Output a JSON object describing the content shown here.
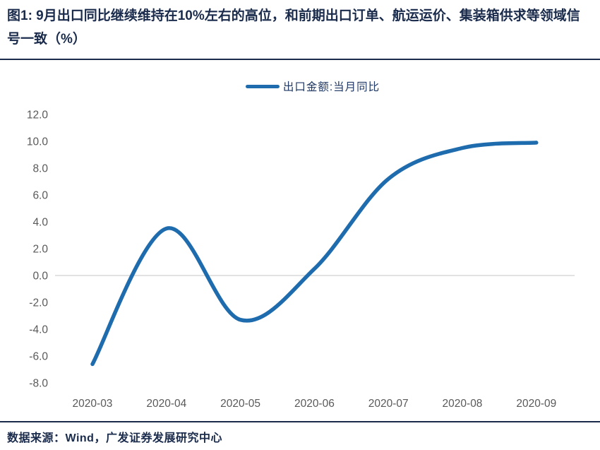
{
  "title": "图1:  9月出口同比继续维持在10%左右的高位，和前期出口订单、航运运价、集装箱供求等领域信号一致（%）",
  "legend": {
    "label": "出口金额:当月同比"
  },
  "footer": {
    "source": "数据来源：Wind，广发证券发展研究中心"
  },
  "colors": {
    "line": "#1e6cad",
    "axis_text": "#595959",
    "zero_line": "#d9d9d9",
    "heading_text": "#1a2b4c"
  },
  "chart_data": {
    "type": "line",
    "title": "出口金额:当月同比",
    "categories": [
      "2020-03",
      "2020-04",
      "2020-05",
      "2020-06",
      "2020-07",
      "2020-08",
      "2020-09"
    ],
    "series": [
      {
        "name": "出口金额:当月同比",
        "values": [
          -6.6,
          3.5,
          -3.3,
          0.5,
          7.2,
          9.5,
          9.9
        ]
      }
    ],
    "xlabel": "",
    "ylabel": "",
    "ylim": [
      -8,
      12
    ],
    "y_tick_step": 2,
    "y_tick_format": "one_decimal",
    "grid": "zero_line_only",
    "legend_position": "top-center",
    "line_smoothing": "spline"
  }
}
